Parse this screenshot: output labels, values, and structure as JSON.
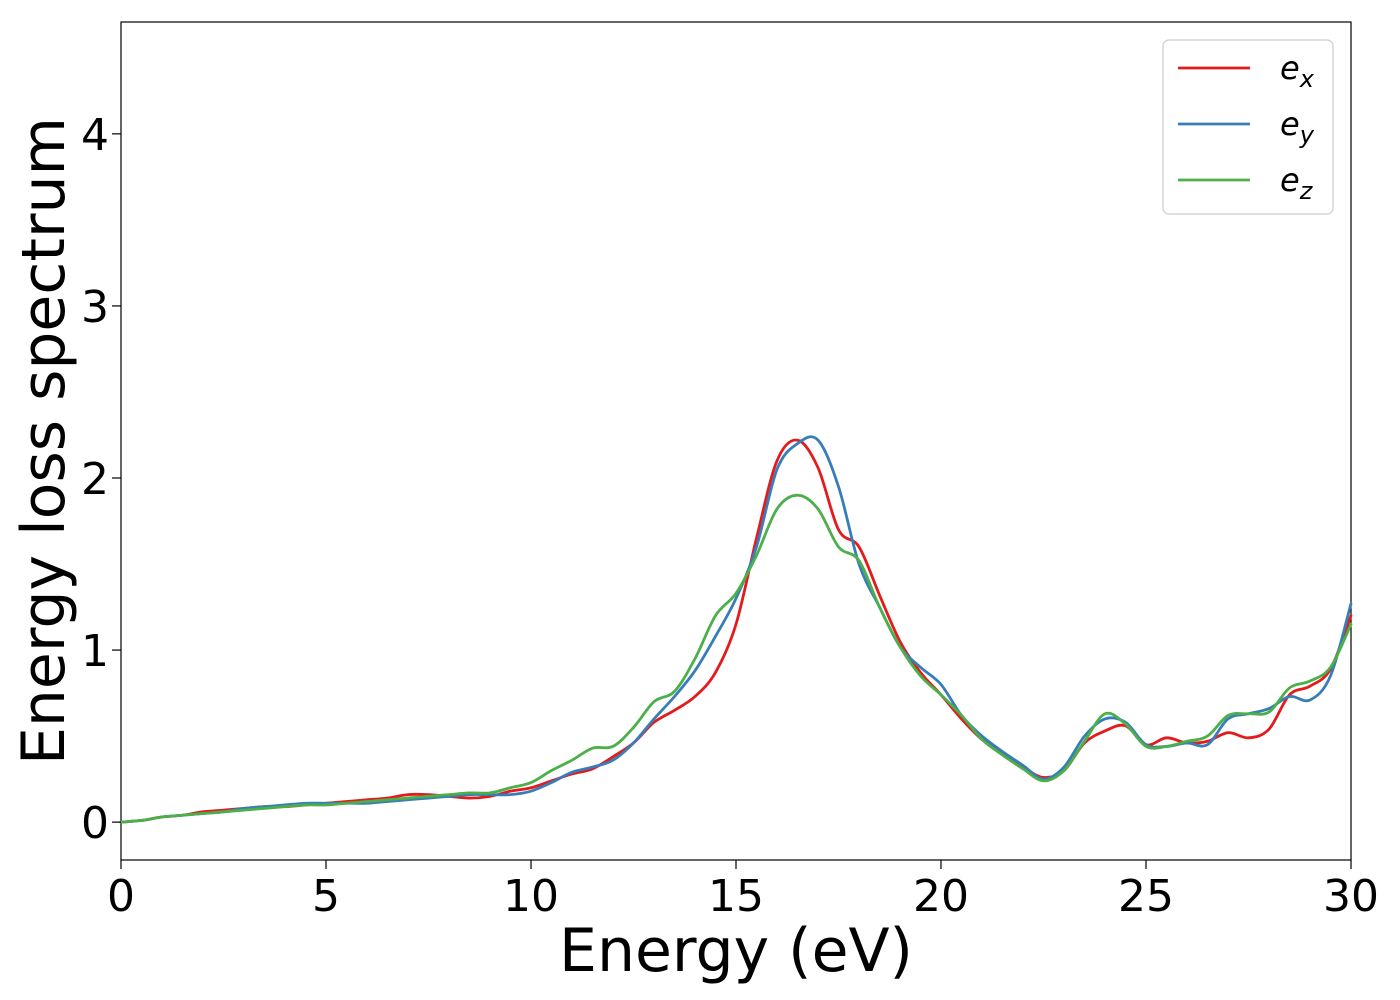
{
  "chart_data": {
    "type": "line",
    "title": "",
    "xlabel": "Energy (eV)",
    "ylabel": "Energy loss spectrum",
    "xlim": [
      0,
      30
    ],
    "ylim": [
      -0.22,
      4.65
    ],
    "xticks": [
      0,
      5,
      10,
      15,
      20,
      25,
      30
    ],
    "yticks": [
      0,
      1,
      2,
      3,
      4
    ],
    "grid": false,
    "legend_position": "top-right",
    "series": [
      {
        "name": "e_x",
        "label_base": "e",
        "label_sub": "x",
        "color": "#e41a1c",
        "x": [
          0,
          0.5,
          1,
          1.5,
          2,
          2.5,
          3,
          3.5,
          4,
          4.5,
          5,
          5.5,
          6,
          6.5,
          7,
          7.5,
          8,
          8.5,
          9,
          9.5,
          10,
          10.5,
          11,
          11.5,
          12,
          12.5,
          13,
          13.5,
          14,
          14.5,
          15,
          15.5,
          16,
          16.5,
          17,
          17.5,
          18,
          18.5,
          19,
          19.5,
          20,
          20.5,
          21,
          21.5,
          22,
          22.5,
          23,
          23.5,
          24,
          24.5,
          25,
          25.5,
          26,
          26.5,
          27,
          27.5,
          28,
          28.5,
          29,
          29.5,
          30
        ],
        "y": [
          0.0,
          0.01,
          0.03,
          0.04,
          0.06,
          0.07,
          0.08,
          0.09,
          0.09,
          0.1,
          0.11,
          0.12,
          0.13,
          0.14,
          0.16,
          0.16,
          0.15,
          0.14,
          0.15,
          0.18,
          0.2,
          0.24,
          0.28,
          0.31,
          0.38,
          0.46,
          0.58,
          0.65,
          0.73,
          0.87,
          1.15,
          1.65,
          2.1,
          2.22,
          2.06,
          1.7,
          1.6,
          1.32,
          1.05,
          0.87,
          0.74,
          0.6,
          0.48,
          0.4,
          0.32,
          0.26,
          0.3,
          0.46,
          0.53,
          0.56,
          0.45,
          0.49,
          0.46,
          0.47,
          0.52,
          0.49,
          0.54,
          0.74,
          0.79,
          0.89,
          1.2
        ]
      },
      {
        "name": "e_y",
        "label_base": "e",
        "label_sub": "y",
        "color": "#377eb8",
        "x": [
          0,
          0.5,
          1,
          1.5,
          2,
          2.5,
          3,
          3.5,
          4,
          4.5,
          5,
          5.5,
          6,
          6.5,
          7,
          7.5,
          8,
          8.5,
          9,
          9.5,
          10,
          10.5,
          11,
          11.5,
          12,
          12.5,
          13,
          13.5,
          14,
          14.5,
          15,
          15.5,
          16,
          16.5,
          17,
          17.5,
          18,
          18.5,
          19,
          19.5,
          20,
          20.5,
          21,
          21.5,
          22,
          22.5,
          23,
          23.5,
          24,
          24.5,
          25,
          25.5,
          26,
          26.5,
          27,
          27.5,
          28,
          28.5,
          29,
          29.5,
          30
        ],
        "y": [
          0.0,
          0.01,
          0.03,
          0.04,
          0.05,
          0.06,
          0.08,
          0.09,
          0.1,
          0.11,
          0.11,
          0.11,
          0.11,
          0.12,
          0.13,
          0.14,
          0.15,
          0.16,
          0.16,
          0.16,
          0.18,
          0.23,
          0.29,
          0.32,
          0.36,
          0.46,
          0.6,
          0.73,
          0.88,
          1.08,
          1.3,
          1.6,
          2.05,
          2.2,
          2.22,
          1.95,
          1.5,
          1.25,
          1.02,
          0.9,
          0.8,
          0.62,
          0.5,
          0.41,
          0.33,
          0.25,
          0.32,
          0.5,
          0.6,
          0.58,
          0.45,
          0.44,
          0.46,
          0.45,
          0.6,
          0.63,
          0.66,
          0.73,
          0.71,
          0.85,
          1.27
        ]
      },
      {
        "name": "e_z",
        "label_base": "e",
        "label_sub": "z",
        "color": "#4daf4a",
        "x": [
          0,
          0.5,
          1,
          1.5,
          2,
          2.5,
          3,
          3.5,
          4,
          4.5,
          5,
          5.5,
          6,
          6.5,
          7,
          7.5,
          8,
          8.5,
          9,
          9.5,
          10,
          10.5,
          11,
          11.5,
          12,
          12.5,
          13,
          13.5,
          14,
          14.5,
          15,
          15.5,
          16,
          16.5,
          17,
          17.5,
          18,
          18.5,
          19,
          19.5,
          20,
          20.5,
          21,
          21.5,
          22,
          22.5,
          23,
          23.5,
          24,
          24.5,
          25,
          25.5,
          26,
          26.5,
          27,
          27.5,
          28,
          28.5,
          29,
          29.5,
          30
        ],
        "y": [
          0.0,
          0.01,
          0.03,
          0.04,
          0.05,
          0.06,
          0.07,
          0.08,
          0.09,
          0.1,
          0.1,
          0.11,
          0.12,
          0.13,
          0.14,
          0.15,
          0.16,
          0.17,
          0.17,
          0.2,
          0.23,
          0.3,
          0.36,
          0.43,
          0.44,
          0.55,
          0.7,
          0.76,
          0.95,
          1.2,
          1.33,
          1.55,
          1.82,
          1.9,
          1.82,
          1.6,
          1.52,
          1.25,
          1.02,
          0.85,
          0.74,
          0.62,
          0.48,
          0.39,
          0.31,
          0.24,
          0.3,
          0.47,
          0.63,
          0.57,
          0.44,
          0.44,
          0.47,
          0.5,
          0.62,
          0.63,
          0.64,
          0.78,
          0.82,
          0.9,
          1.15
        ]
      }
    ]
  }
}
